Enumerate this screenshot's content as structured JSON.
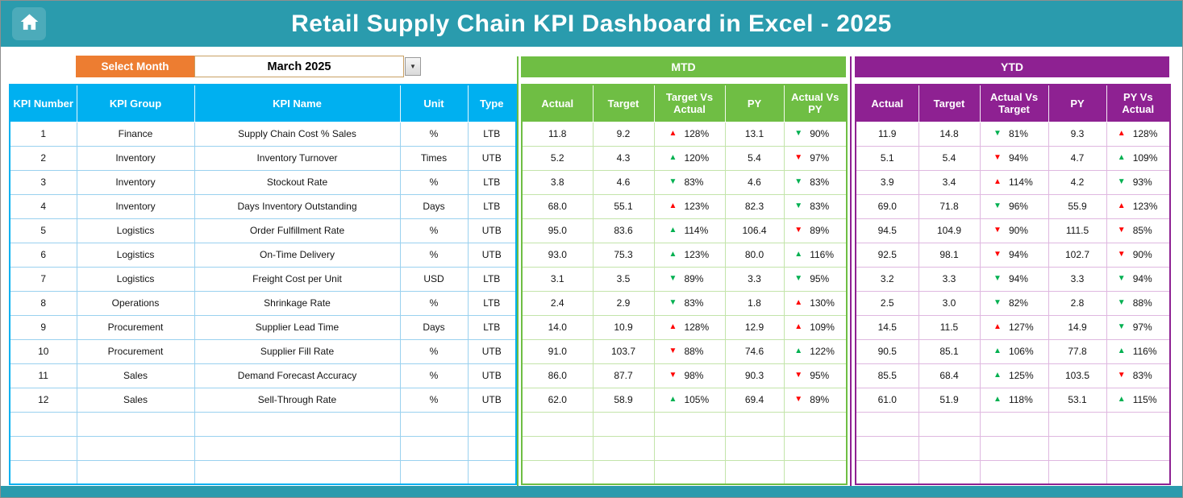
{
  "header": {
    "title": "Retail Supply Chain KPI Dashboard in Excel - 2025"
  },
  "controls": {
    "select_month_label": "Select Month",
    "selected_month": "March 2025",
    "dropdown_arrow": "▼"
  },
  "sections": {
    "mtd": "MTD",
    "ytd": "YTD"
  },
  "colors": {
    "teal": "#2A9BAD",
    "orange": "#ED7D31",
    "blue": "#00B0F0",
    "mtd_green": "#6FBE44",
    "ytd_purple": "#8E2192",
    "negative_red": "#FF0000",
    "positive_green": "#00B050"
  },
  "table": {
    "info_headers": [
      "KPI Number",
      "KPI Group",
      "KPI Name",
      "Unit",
      "Type"
    ],
    "mtd_headers": [
      "Actual",
      "Target",
      "Target Vs Actual",
      "PY",
      "Actual Vs PY"
    ],
    "ytd_headers": [
      "Actual",
      "Target",
      "Actual Vs Target",
      "PY",
      "PY Vs Actual"
    ],
    "empty_row_count": 3,
    "rows": [
      {
        "number": "1",
        "group": "Finance",
        "name": "Supply Chain Cost % Sales",
        "unit": "%",
        "type": "LTB",
        "mtd": {
          "actual": "11.8",
          "target": "9.2",
          "target_vs_actual": {
            "dir": "up",
            "color": "red",
            "value": "128%"
          },
          "py": "13.1",
          "actual_vs_py": {
            "dir": "down",
            "color": "green",
            "value": "90%"
          }
        },
        "ytd": {
          "actual": "11.9",
          "target": "14.8",
          "actual_vs_target": {
            "dir": "down",
            "color": "green",
            "value": "81%"
          },
          "py": "9.3",
          "py_vs_actual": {
            "dir": "up",
            "color": "red",
            "value": "128%"
          }
        }
      },
      {
        "number": "2",
        "group": "Inventory",
        "name": "Inventory Turnover",
        "unit": "Times",
        "type": "UTB",
        "mtd": {
          "actual": "5.2",
          "target": "4.3",
          "target_vs_actual": {
            "dir": "up",
            "color": "green",
            "value": "120%"
          },
          "py": "5.4",
          "actual_vs_py": {
            "dir": "down",
            "color": "red",
            "value": "97%"
          }
        },
        "ytd": {
          "actual": "5.1",
          "target": "5.4",
          "actual_vs_target": {
            "dir": "down",
            "color": "red",
            "value": "94%"
          },
          "py": "4.7",
          "py_vs_actual": {
            "dir": "up",
            "color": "green",
            "value": "109%"
          }
        }
      },
      {
        "number": "3",
        "group": "Inventory",
        "name": "Stockout Rate",
        "unit": "%",
        "type": "LTB",
        "mtd": {
          "actual": "3.8",
          "target": "4.6",
          "target_vs_actual": {
            "dir": "down",
            "color": "green",
            "value": "83%"
          },
          "py": "4.6",
          "actual_vs_py": {
            "dir": "down",
            "color": "green",
            "value": "83%"
          }
        },
        "ytd": {
          "actual": "3.9",
          "target": "3.4",
          "actual_vs_target": {
            "dir": "up",
            "color": "red",
            "value": "114%"
          },
          "py": "4.2",
          "py_vs_actual": {
            "dir": "down",
            "color": "green",
            "value": "93%"
          }
        }
      },
      {
        "number": "4",
        "group": "Inventory",
        "name": "Days Inventory Outstanding",
        "unit": "Days",
        "type": "LTB",
        "mtd": {
          "actual": "68.0",
          "target": "55.1",
          "target_vs_actual": {
            "dir": "up",
            "color": "red",
            "value": "123%"
          },
          "py": "82.3",
          "actual_vs_py": {
            "dir": "down",
            "color": "green",
            "value": "83%"
          }
        },
        "ytd": {
          "actual": "69.0",
          "target": "71.8",
          "actual_vs_target": {
            "dir": "down",
            "color": "green",
            "value": "96%"
          },
          "py": "55.9",
          "py_vs_actual": {
            "dir": "up",
            "color": "red",
            "value": "123%"
          }
        }
      },
      {
        "number": "5",
        "group": "Logistics",
        "name": "Order Fulfillment Rate",
        "unit": "%",
        "type": "UTB",
        "mtd": {
          "actual": "95.0",
          "target": "83.6",
          "target_vs_actual": {
            "dir": "up",
            "color": "green",
            "value": "114%"
          },
          "py": "106.4",
          "actual_vs_py": {
            "dir": "down",
            "color": "red",
            "value": "89%"
          }
        },
        "ytd": {
          "actual": "94.5",
          "target": "104.9",
          "actual_vs_target": {
            "dir": "down",
            "color": "red",
            "value": "90%"
          },
          "py": "111.5",
          "py_vs_actual": {
            "dir": "down",
            "color": "red",
            "value": "85%"
          }
        }
      },
      {
        "number": "6",
        "group": "Logistics",
        "name": "On-Time Delivery",
        "unit": "%",
        "type": "UTB",
        "mtd": {
          "actual": "93.0",
          "target": "75.3",
          "target_vs_actual": {
            "dir": "up",
            "color": "green",
            "value": "123%"
          },
          "py": "80.0",
          "actual_vs_py": {
            "dir": "up",
            "color": "green",
            "value": "116%"
          }
        },
        "ytd": {
          "actual": "92.5",
          "target": "98.1",
          "actual_vs_target": {
            "dir": "down",
            "color": "red",
            "value": "94%"
          },
          "py": "102.7",
          "py_vs_actual": {
            "dir": "down",
            "color": "red",
            "value": "90%"
          }
        }
      },
      {
        "number": "7",
        "group": "Logistics",
        "name": "Freight Cost per Unit",
        "unit": "USD",
        "type": "LTB",
        "mtd": {
          "actual": "3.1",
          "target": "3.5",
          "target_vs_actual": {
            "dir": "down",
            "color": "green",
            "value": "89%"
          },
          "py": "3.3",
          "actual_vs_py": {
            "dir": "down",
            "color": "green",
            "value": "95%"
          }
        },
        "ytd": {
          "actual": "3.2",
          "target": "3.3",
          "actual_vs_target": {
            "dir": "down",
            "color": "green",
            "value": "94%"
          },
          "py": "3.3",
          "py_vs_actual": {
            "dir": "down",
            "color": "green",
            "value": "94%"
          }
        }
      },
      {
        "number": "8",
        "group": "Operations",
        "name": "Shrinkage Rate",
        "unit": "%",
        "type": "LTB",
        "mtd": {
          "actual": "2.4",
          "target": "2.9",
          "target_vs_actual": {
            "dir": "down",
            "color": "green",
            "value": "83%"
          },
          "py": "1.8",
          "actual_vs_py": {
            "dir": "up",
            "color": "red",
            "value": "130%"
          }
        },
        "ytd": {
          "actual": "2.5",
          "target": "3.0",
          "actual_vs_target": {
            "dir": "down",
            "color": "green",
            "value": "82%"
          },
          "py": "2.8",
          "py_vs_actual": {
            "dir": "down",
            "color": "green",
            "value": "88%"
          }
        }
      },
      {
        "number": "9",
        "group": "Procurement",
        "name": "Supplier Lead Time",
        "unit": "Days",
        "type": "LTB",
        "mtd": {
          "actual": "14.0",
          "target": "10.9",
          "target_vs_actual": {
            "dir": "up",
            "color": "red",
            "value": "128%"
          },
          "py": "12.9",
          "actual_vs_py": {
            "dir": "up",
            "color": "red",
            "value": "109%"
          }
        },
        "ytd": {
          "actual": "14.5",
          "target": "11.5",
          "actual_vs_target": {
            "dir": "up",
            "color": "red",
            "value": "127%"
          },
          "py": "14.9",
          "py_vs_actual": {
            "dir": "down",
            "color": "green",
            "value": "97%"
          }
        }
      },
      {
        "number": "10",
        "group": "Procurement",
        "name": "Supplier Fill Rate",
        "unit": "%",
        "type": "UTB",
        "mtd": {
          "actual": "91.0",
          "target": "103.7",
          "target_vs_actual": {
            "dir": "down",
            "color": "red",
            "value": "88%"
          },
          "py": "74.6",
          "actual_vs_py": {
            "dir": "up",
            "color": "green",
            "value": "122%"
          }
        },
        "ytd": {
          "actual": "90.5",
          "target": "85.1",
          "actual_vs_target": {
            "dir": "up",
            "color": "green",
            "value": "106%"
          },
          "py": "77.8",
          "py_vs_actual": {
            "dir": "up",
            "color": "green",
            "value": "116%"
          }
        }
      },
      {
        "number": "11",
        "group": "Sales",
        "name": "Demand Forecast Accuracy",
        "unit": "%",
        "type": "UTB",
        "mtd": {
          "actual": "86.0",
          "target": "87.7",
          "target_vs_actual": {
            "dir": "down",
            "color": "red",
            "value": "98%"
          },
          "py": "90.3",
          "actual_vs_py": {
            "dir": "down",
            "color": "red",
            "value": "95%"
          }
        },
        "ytd": {
          "actual": "85.5",
          "target": "68.4",
          "actual_vs_target": {
            "dir": "up",
            "color": "green",
            "value": "125%"
          },
          "py": "103.5",
          "py_vs_actual": {
            "dir": "down",
            "color": "red",
            "value": "83%"
          }
        }
      },
      {
        "number": "12",
        "group": "Sales",
        "name": "Sell-Through Rate",
        "unit": "%",
        "type": "UTB",
        "mtd": {
          "actual": "62.0",
          "target": "58.9",
          "target_vs_actual": {
            "dir": "up",
            "color": "green",
            "value": "105%"
          },
          "py": "69.4",
          "actual_vs_py": {
            "dir": "down",
            "color": "red",
            "value": "89%"
          }
        },
        "ytd": {
          "actual": "61.0",
          "target": "51.9",
          "actual_vs_target": {
            "dir": "up",
            "color": "green",
            "value": "118%"
          },
          "py": "53.1",
          "py_vs_actual": {
            "dir": "up",
            "color": "green",
            "value": "115%"
          }
        }
      }
    ]
  }
}
